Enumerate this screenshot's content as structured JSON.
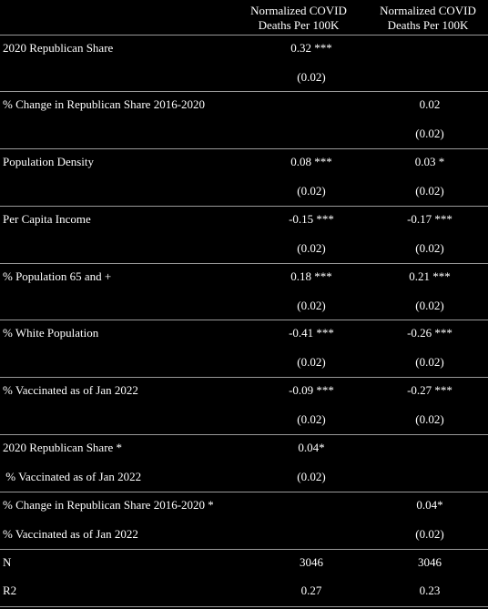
{
  "header": {
    "col1": "Normalized COVID\nDeaths Per 100K",
    "col2": "Normalized COVID\nDeaths Per 100K"
  },
  "rows": [
    {
      "label": "2020 Republican Share",
      "label2": "",
      "c1": "0.32 ***",
      "c1_se": "(0.02)",
      "c2": "",
      "c2_se": ""
    },
    {
      "label": "% Change in Republican Share 2016-2020",
      "label2": "",
      "c1": "",
      "c1_se": "",
      "c2": "0.02",
      "c2_se": "(0.02)"
    },
    {
      "label": "Population Density",
      "label2": "",
      "c1": "0.08 ***",
      "c1_se": "(0.02)",
      "c2": "0.03 *",
      "c2_se": "(0.02)"
    },
    {
      "label": "Per Capita Income",
      "label2": "",
      "c1": "-0.15 ***",
      "c1_se": "(0.02)",
      "c2": "-0.17 ***",
      "c2_se": "(0.02)"
    },
    {
      "label": "% Population 65 and +",
      "label2": "",
      "c1": "0.18 ***",
      "c1_se": "(0.02)",
      "c2": "0.21 ***",
      "c2_se": "(0.02)"
    },
    {
      "label": "% White Population",
      "label2": "",
      "c1": "-0.41 ***",
      "c1_se": "(0.02)",
      "c2": "-0.26 ***",
      "c2_se": "(0.02)"
    },
    {
      "label": "% Vaccinated as of Jan 2022",
      "label2": "",
      "c1": "-0.09 ***",
      "c1_se": "(0.02)",
      "c2": "-0.27 ***",
      "c2_se": "(0.02)"
    },
    {
      "label": "2020 Republican Share *",
      "label2": " % Vaccinated as of Jan 2022",
      "c1": "0.04*",
      "c1_se": "(0.02)",
      "c2": "",
      "c2_se": ""
    },
    {
      "label": "% Change in Republican Share 2016-2020 *",
      "label2": "% Vaccinated as of Jan 2022",
      "c1": "",
      "c1_se": "",
      "c2": "0.04*",
      "c2_se": "(0.02)"
    }
  ],
  "stats": [
    {
      "label": "N",
      "c1": "3046",
      "c2": "3046"
    },
    {
      "label": "R2",
      "c1": "0.27",
      "c2": "0.23"
    }
  ]
}
